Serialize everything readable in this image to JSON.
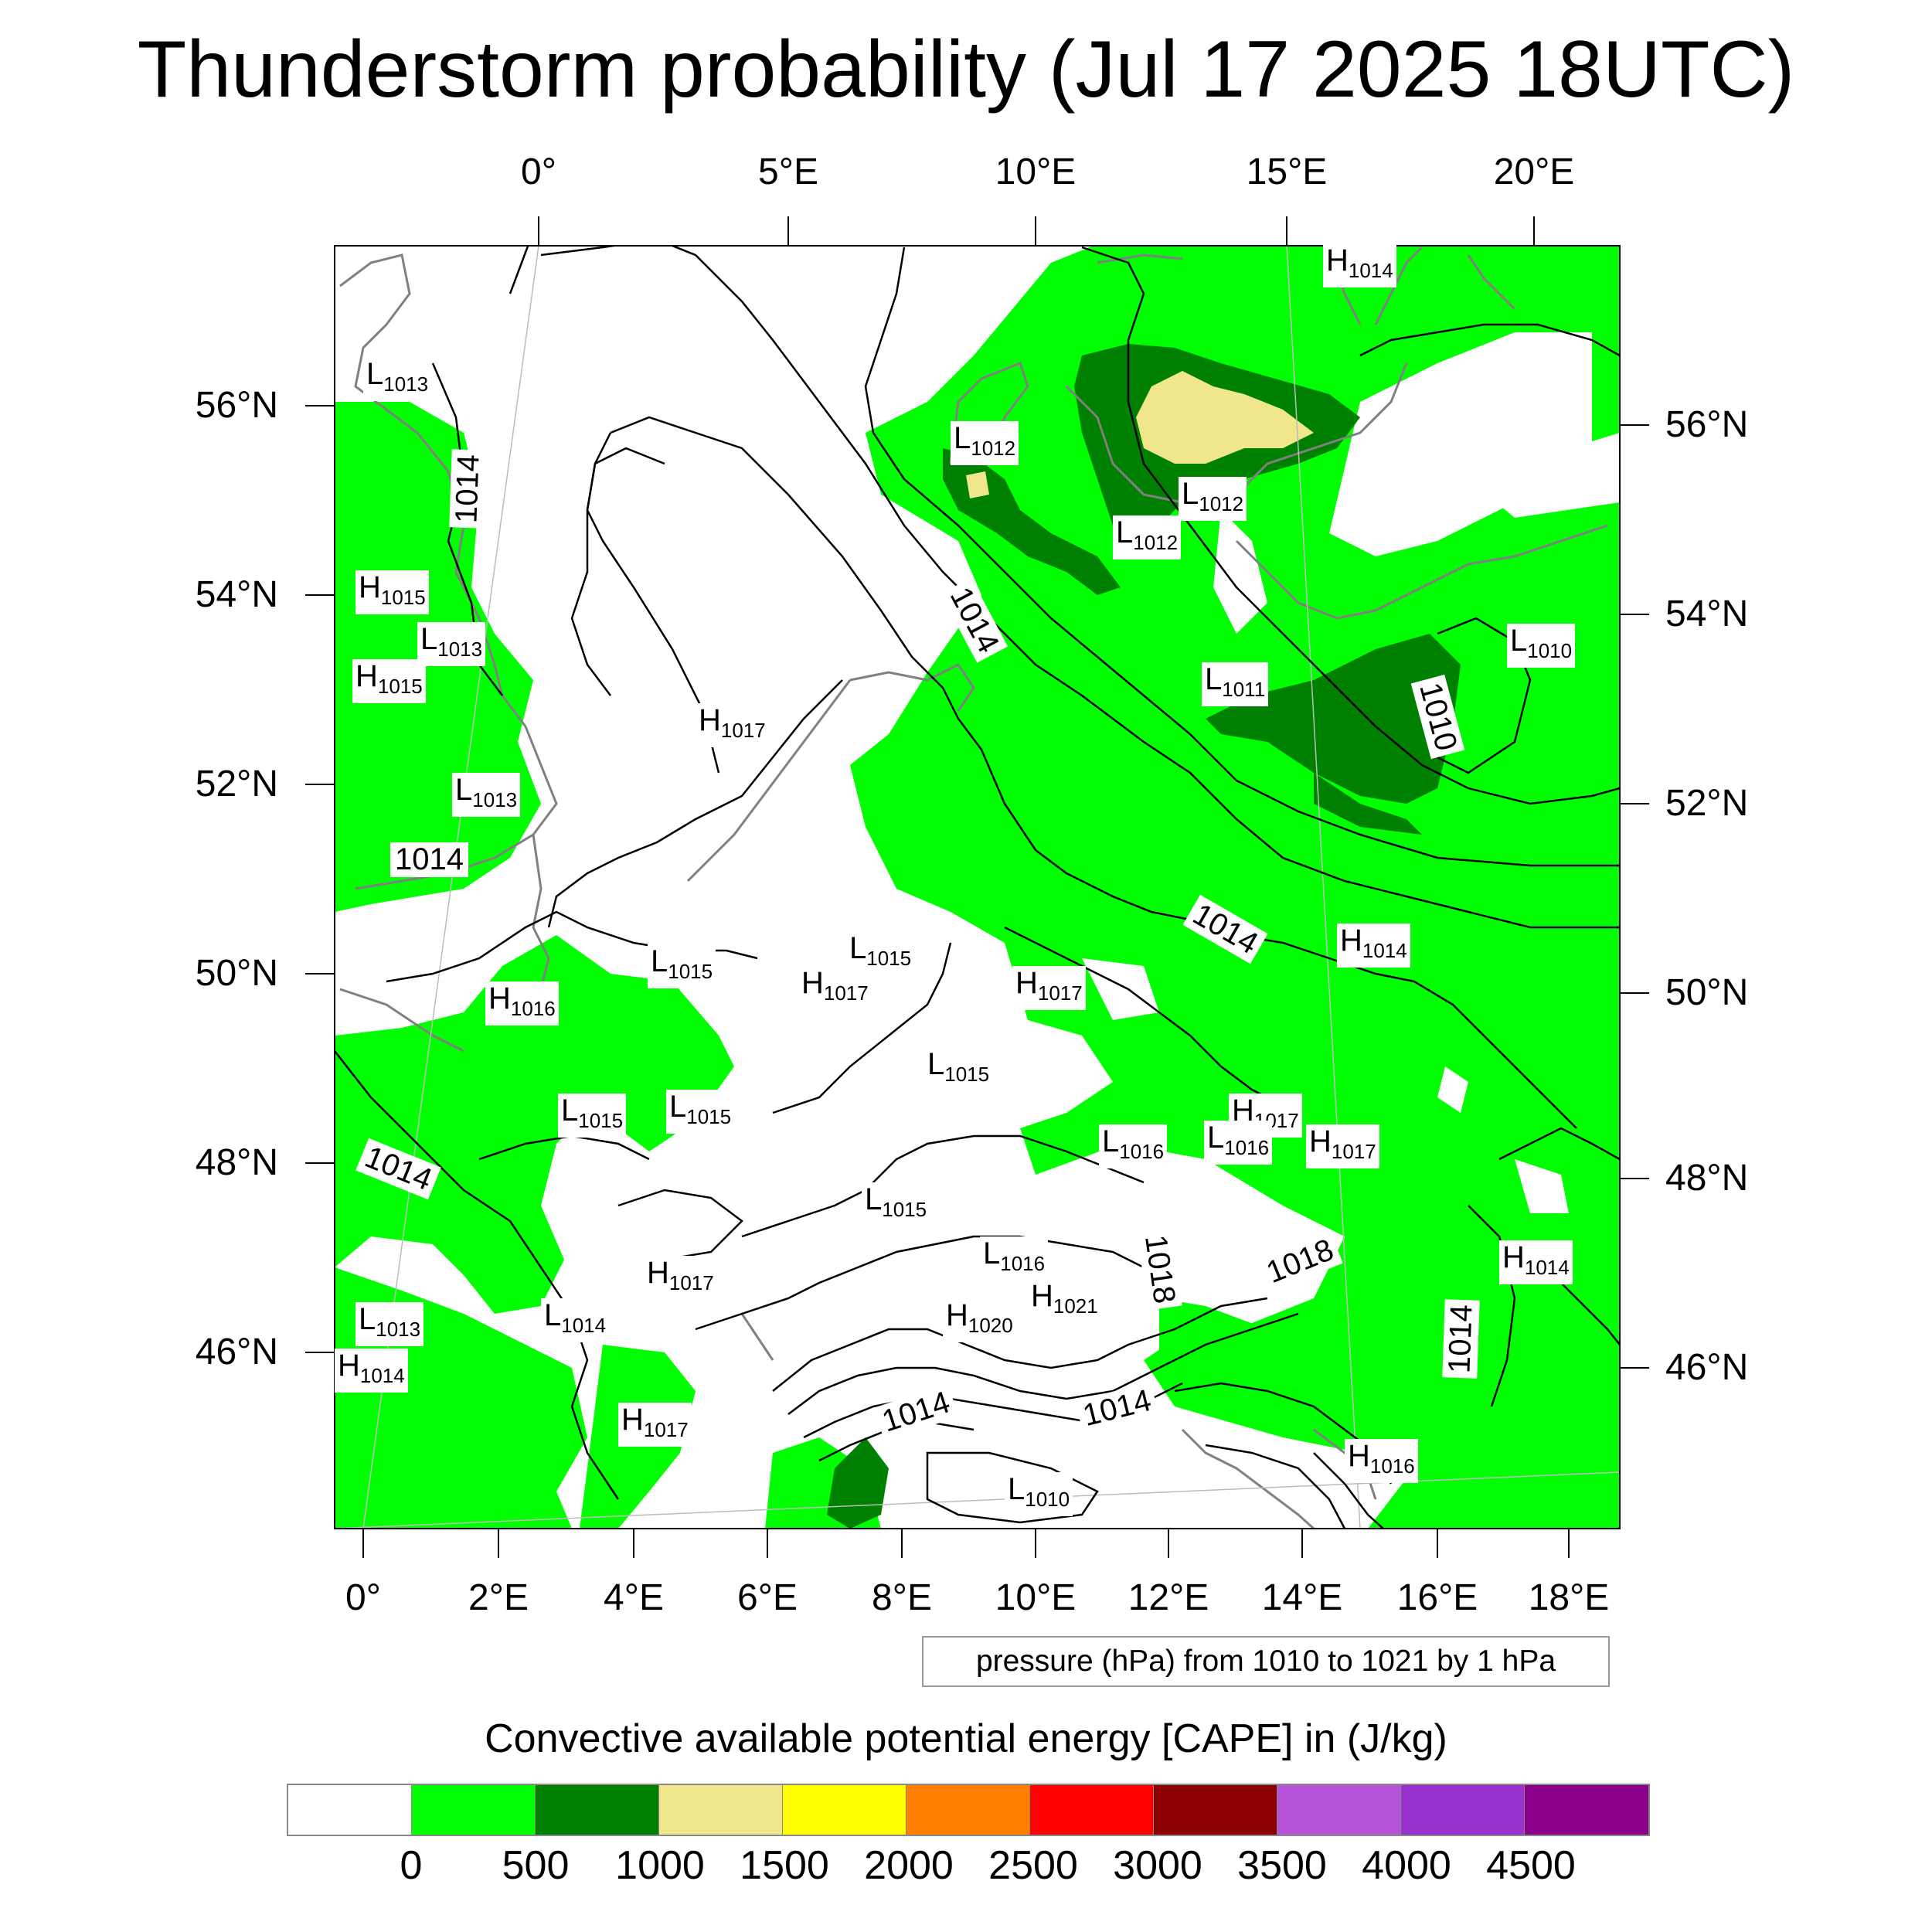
{
  "title": "Thunderstorm probability (Jul 17 2025 18UTC)",
  "map": {
    "top_lon_labels": [
      "0°",
      "5°E",
      "10°E",
      "15°E",
      "20°E"
    ],
    "bottom_lon_labels": [
      "0°",
      "2°E",
      "4°E",
      "6°E",
      "8°E",
      "10°E",
      "12°E",
      "14°E",
      "16°E",
      "18°E"
    ],
    "left_lat_labels": [
      "56°N",
      "54°N",
      "52°N",
      "50°N",
      "48°N",
      "46°N"
    ],
    "right_lat_labels": [
      "56°N",
      "54°N",
      "52°N",
      "50°N",
      "48°N",
      "46°N"
    ],
    "contour_labels": [
      "1014",
      "1014",
      "1014",
      "1014",
      "1014",
      "1014",
      "1014",
      "1010",
      "1018",
      "1018",
      "1014"
    ],
    "pressure_centers": [
      {
        "letter": "L",
        "value": "1013"
      },
      {
        "letter": "H",
        "value": "1014"
      },
      {
        "letter": "L",
        "value": "1012"
      },
      {
        "letter": "L",
        "value": "1012"
      },
      {
        "letter": "L",
        "value": "1012"
      },
      {
        "letter": "H",
        "value": "1015"
      },
      {
        "letter": "L",
        "value": "1013"
      },
      {
        "letter": "H",
        "value": "1015"
      },
      {
        "letter": "H",
        "value": "1017"
      },
      {
        "letter": "L",
        "value": "1011"
      },
      {
        "letter": "L",
        "value": "1010"
      },
      {
        "letter": "L",
        "value": "1013"
      },
      {
        "letter": "L",
        "value": "1015"
      },
      {
        "letter": "L",
        "value": "1015"
      },
      {
        "letter": "H",
        "value": "1017"
      },
      {
        "letter": "H",
        "value": "1017"
      },
      {
        "letter": "H",
        "value": "1014"
      },
      {
        "letter": "H",
        "value": "1016"
      },
      {
        "letter": "L",
        "value": "1015"
      },
      {
        "letter": "L",
        "value": "1015"
      },
      {
        "letter": "L",
        "value": "1015"
      },
      {
        "letter": "H",
        "value": "1017"
      },
      {
        "letter": "L",
        "value": "1016"
      },
      {
        "letter": "L",
        "value": "1016"
      },
      {
        "letter": "H",
        "value": "1017"
      },
      {
        "letter": "L",
        "value": "1015"
      },
      {
        "letter": "H",
        "value": "1017"
      },
      {
        "letter": "L",
        "value": "1016"
      },
      {
        "letter": "H",
        "value": "1021"
      },
      {
        "letter": "H",
        "value": "1020"
      },
      {
        "letter": "L",
        "value": "1014"
      },
      {
        "letter": "L",
        "value": "1013"
      },
      {
        "letter": "H",
        "value": "1014"
      },
      {
        "letter": "H",
        "value": "1017"
      },
      {
        "letter": "L",
        "value": "1010"
      },
      {
        "letter": "H",
        "value": "1016"
      },
      {
        "letter": "H",
        "value": "1014"
      }
    ]
  },
  "info_box": "pressure (hPa) from 1010 to 1021 by 1 hPa",
  "colorbar": {
    "title": "Convective available potential energy [CAPE] in (J/kg)",
    "colors": [
      "#ffffff",
      "#00ff00",
      "#008000",
      "#f0e68c",
      "#ffff00",
      "#ff8000",
      "#ff0000",
      "#8b0000",
      "#b653d6",
      "#9932cc",
      "#8b008b"
    ],
    "ticks": [
      "0",
      "500",
      "1000",
      "1500",
      "2000",
      "2500",
      "3000",
      "3500",
      "4000",
      "4500"
    ]
  },
  "colors": {
    "cape_0_500": "#00ff00",
    "cape_500_1000": "#008000",
    "cape_1000_1500": "#f0e68c",
    "coastline": "#808080",
    "isobar": "#000000"
  }
}
